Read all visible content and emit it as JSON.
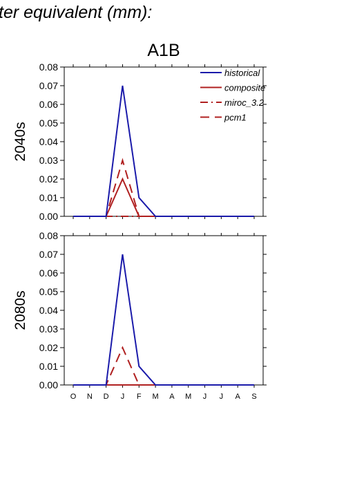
{
  "title": "ter equivalent (mm):",
  "chart_data": {
    "type": "line",
    "scenario": "A1B",
    "categories": [
      "O",
      "N",
      "D",
      "J",
      "F",
      "M",
      "A",
      "M",
      "J",
      "J",
      "A",
      "S"
    ],
    "ylim": [
      0,
      0.08
    ],
    "yticks": [
      "0.00",
      "0.01",
      "0.02",
      "0.03",
      "0.04",
      "0.05",
      "0.06",
      "0.07",
      "0.08"
    ],
    "grid": false,
    "legend_position": "top-right",
    "legend": [
      {
        "name": "historical",
        "color": "#1a1aaa",
        "dash": "solid"
      },
      {
        "name": "composite",
        "color": "#b02020",
        "dash": "solid"
      },
      {
        "name": "miroc_3.2",
        "color": "#b02020",
        "dash": "dashdot"
      },
      {
        "name": "pcm1",
        "color": "#b02020",
        "dash": "dashed"
      }
    ],
    "panels": [
      {
        "label": "2040s",
        "series": [
          {
            "name": "historical",
            "values": [
              0,
              0,
              0,
              0.07,
              0.01,
              0,
              0,
              0,
              0,
              0,
              0,
              0
            ]
          },
          {
            "name": "composite",
            "values": [
              0,
              0,
              0,
              0.02,
              0,
              0,
              0,
              0,
              0,
              0,
              0,
              0
            ]
          },
          {
            "name": "miroc_3.2",
            "values": [
              0,
              0,
              0,
              0,
              0,
              0,
              0,
              0,
              0,
              0,
              0,
              0
            ]
          },
          {
            "name": "pcm1",
            "values": [
              0,
              0,
              0,
              0.03,
              0,
              0,
              0,
              0,
              0,
              0,
              0,
              0
            ]
          }
        ]
      },
      {
        "label": "2080s",
        "series": [
          {
            "name": "historical",
            "values": [
              0,
              0,
              0,
              0.07,
              0.01,
              0,
              0,
              0,
              0,
              0,
              0,
              0
            ]
          },
          {
            "name": "composite",
            "values": [
              0,
              0,
              0,
              0,
              0,
              0,
              0,
              0,
              0,
              0,
              0,
              0
            ]
          },
          {
            "name": "miroc_3.2",
            "values": [
              0,
              0,
              0,
              0,
              0,
              0,
              0,
              0,
              0,
              0,
              0,
              0
            ]
          },
          {
            "name": "pcm1",
            "values": [
              0,
              0,
              0,
              0.02,
              0,
              0,
              0,
              0,
              0,
              0,
              0,
              0
            ]
          }
        ]
      }
    ]
  }
}
